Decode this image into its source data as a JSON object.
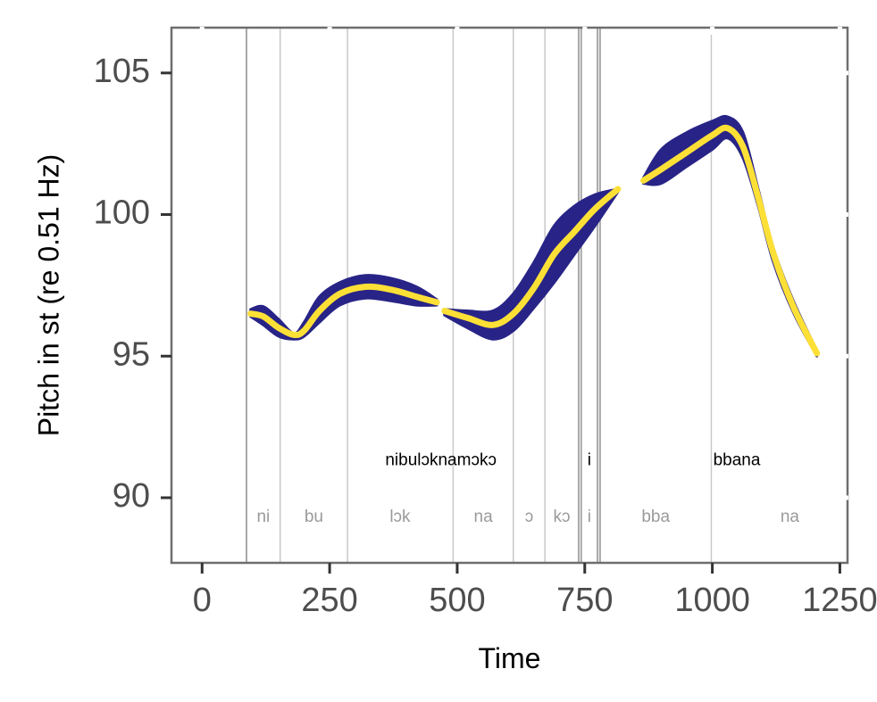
{
  "chart_data": {
    "type": "line",
    "title": "",
    "xlabel": "Time",
    "ylabel": "Pitch in st (re 0.51 Hz)",
    "xlim": [
      -60,
      1265
    ],
    "ylim": [
      87.7,
      106.6
    ],
    "x_ticks": [
      {
        "value": 0,
        "label": "0"
      },
      {
        "value": 250,
        "label": "250"
      },
      {
        "value": 500,
        "label": "500"
      },
      {
        "value": 750,
        "label": "750"
      },
      {
        "value": 1000,
        "label": "1000"
      },
      {
        "value": 1250,
        "label": "1250"
      }
    ],
    "y_ticks": [
      {
        "value": 90,
        "label": "90"
      },
      {
        "value": 95,
        "label": "95"
      },
      {
        "value": 100,
        "label": "100"
      },
      {
        "value": 105,
        "label": "105"
      }
    ],
    "grid": false,
    "colors": {
      "band": "#282487",
      "line": "#fde036",
      "frame": "#6e6e6e",
      "boundary": "#c8c8c8",
      "boundary_strong": "#a8a8a8"
    },
    "boundaries": [
      87,
      153,
      285,
      492,
      610,
      672,
      738,
      743,
      775,
      780,
      998
    ],
    "strong_boundaries": [
      87,
      738,
      743,
      775,
      780
    ],
    "words": [
      {
        "label": "nibulɔknamɔkɔ",
        "x": 468,
        "y": 91.3
      },
      {
        "label": "i",
        "x": 759,
        "y": 91.3
      },
      {
        "label": "bbana",
        "x": 1048,
        "y": 91.3
      }
    ],
    "syllables": [
      {
        "label": "ni",
        "x": 120,
        "y": 89.3
      },
      {
        "label": "bu",
        "x": 219,
        "y": 89.3
      },
      {
        "label": "lɔk",
        "x": 388,
        "y": 89.3
      },
      {
        "label": "na",
        "x": 551,
        "y": 89.3
      },
      {
        "label": "ɔ",
        "x": 641,
        "y": 89.3
      },
      {
        "label": "kɔ",
        "x": 705,
        "y": 89.3
      },
      {
        "label": "i",
        "x": 759,
        "y": 89.3
      },
      {
        "label": "bba",
        "x": 889,
        "y": 89.3
      },
      {
        "label": "na",
        "x": 1152,
        "y": 89.3
      }
    ],
    "series": [
      {
        "segments": [
          {
            "x": [
              95,
              120,
              150,
              180,
              200,
              230,
              270,
              320,
              370,
              420,
              460
            ],
            "y": [
              96.5,
              96.4,
              96.0,
              95.75,
              95.9,
              96.6,
              97.2,
              97.45,
              97.35,
              97.1,
              96.9
            ],
            "upper": [
              96.65,
              96.75,
              96.3,
              95.8,
              96.2,
              97.1,
              97.6,
              97.85,
              97.75,
              97.45,
              97.0
            ],
            "lower": [
              96.4,
              96.1,
              95.7,
              95.6,
              95.7,
              96.2,
              96.8,
              97.05,
              96.95,
              96.8,
              96.8
            ]
          },
          {
            "x": [
              475,
              520,
              570,
              610,
              650,
              690,
              730,
              770,
              815
            ],
            "y": [
              96.6,
              96.35,
              96.1,
              96.5,
              97.4,
              98.6,
              99.4,
              100.2,
              100.9
            ],
            "upper": [
              96.65,
              96.6,
              96.6,
              97.2,
              98.3,
              99.6,
              100.3,
              100.7,
              100.9
            ],
            "lower": [
              96.45,
              96.0,
              95.6,
              95.9,
              96.7,
              97.6,
              98.6,
              99.6,
              100.8
            ]
          },
          {
            "x": [
              865,
              900,
              950,
              1000,
              1030,
              1060,
              1090,
              1120,
              1160,
              1205
            ],
            "y": [
              101.2,
              101.6,
              102.2,
              102.8,
              103.05,
              102.4,
              100.6,
              98.6,
              96.7,
              95.1
            ],
            "upper": [
              101.3,
              102.3,
              102.9,
              103.3,
              103.45,
              102.9,
              100.9,
              98.8,
              96.9,
              95.2
            ],
            "lower": [
              101.1,
              101.1,
              101.7,
              102.3,
              102.7,
              102.0,
              100.3,
              98.3,
              96.5,
              95.0
            ]
          }
        ]
      }
    ]
  }
}
